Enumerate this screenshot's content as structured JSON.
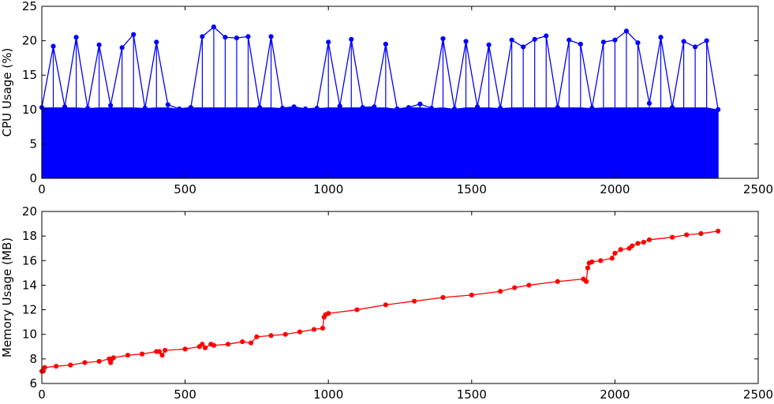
{
  "chart_data": [
    {
      "type": "line",
      "panel": "top",
      "ylabel": "CPU Usage (%)",
      "xlim": [
        0,
        2500
      ],
      "ylim": [
        0,
        25
      ],
      "xticks": [
        "0",
        "500",
        "1000",
        "1500",
        "2000",
        "2500"
      ],
      "yticks": [
        "0",
        "5",
        "10",
        "15",
        "20",
        "25"
      ],
      "grid": false,
      "marker": "circle",
      "color": "#0000ff",
      "series": [
        {
          "x": [
            0,
            40,
            80,
            120,
            160,
            200,
            240,
            280,
            320,
            360,
            400,
            440,
            480,
            520,
            560,
            600,
            640,
            680,
            720,
            760,
            800,
            840,
            880,
            920,
            960,
            1000,
            1040,
            1080,
            1120,
            1160,
            1200,
            1240,
            1280,
            1320,
            1360,
            1400,
            1440,
            1480,
            1520,
            1560,
            1600,
            1640,
            1680,
            1720,
            1760,
            1800,
            1840,
            1880,
            1920,
            1960,
            2000,
            2040,
            2080,
            2120,
            2160,
            2200,
            2240,
            2280,
            2320,
            2360
          ],
          "y": [
            10.3,
            19.2,
            10.4,
            20.5,
            10.2,
            19.4,
            10.6,
            19.0,
            20.9,
            10.2,
            19.8,
            10.7,
            10.1,
            10.3,
            20.6,
            22.0,
            20.5,
            20.4,
            20.6,
            10.3,
            20.6,
            10.2,
            10.4,
            10.1,
            10.2,
            19.8,
            10.5,
            20.2,
            10.3,
            10.4,
            19.5,
            10.1,
            10.3,
            10.8,
            10.2,
            20.3,
            10.1,
            19.9,
            10.4,
            19.4,
            10.2,
            20.1,
            19.1,
            20.2,
            20.7,
            10.3,
            20.1,
            19.5,
            10.2,
            19.8,
            20.1,
            21.4,
            19.7,
            10.9,
            20.5,
            10.3,
            19.9,
            19.1,
            20.0,
            10.0
          ]
        }
      ]
    },
    {
      "type": "line",
      "panel": "bottom",
      "ylabel": "Memory Usage (MB)",
      "xlim": [
        0,
        2500
      ],
      "ylim": [
        6,
        20
      ],
      "xticks": [
        "0",
        "500",
        "1000",
        "1500",
        "2000",
        "2500"
      ],
      "yticks": [
        "6",
        "8",
        "10",
        "12",
        "14",
        "16",
        "18",
        "20"
      ],
      "grid": false,
      "marker": "circle",
      "color": "#ff0000",
      "series": [
        {
          "x": [
            0,
            5,
            10,
            50,
            100,
            150,
            200,
            235,
            240,
            245,
            250,
            300,
            350,
            400,
            410,
            420,
            430,
            500,
            550,
            560,
            570,
            590,
            600,
            650,
            700,
            730,
            750,
            800,
            850,
            900,
            950,
            980,
            985,
            990,
            1000,
            1100,
            1200,
            1300,
            1400,
            1500,
            1600,
            1650,
            1700,
            1800,
            1890,
            1900,
            1905,
            1910,
            1920,
            1950,
            1990,
            2000,
            2020,
            2050,
            2060,
            2080,
            2100,
            2120,
            2200,
            2250,
            2300,
            2360
          ],
          "y": [
            7.0,
            7.0,
            7.3,
            7.4,
            7.5,
            7.7,
            7.8,
            8.0,
            7.7,
            8.0,
            8.1,
            8.3,
            8.4,
            8.6,
            8.6,
            8.3,
            8.7,
            8.8,
            9.0,
            9.2,
            8.9,
            9.2,
            9.1,
            9.2,
            9.4,
            9.3,
            9.8,
            9.9,
            10.0,
            10.2,
            10.4,
            10.5,
            11.4,
            11.6,
            11.7,
            12.0,
            12.4,
            12.7,
            13.0,
            13.2,
            13.5,
            13.8,
            14.0,
            14.3,
            14.5,
            14.3,
            15.4,
            15.8,
            15.9,
            16.0,
            16.2,
            16.6,
            16.9,
            17.0,
            17.2,
            17.4,
            17.5,
            17.7,
            17.9,
            18.1,
            18.2,
            18.4
          ]
        }
      ]
    }
  ]
}
